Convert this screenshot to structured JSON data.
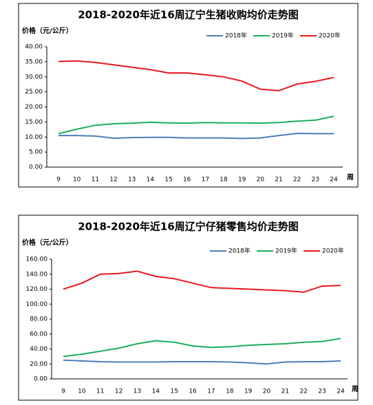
{
  "chart_data": [
    {
      "type": "line",
      "title": "2018-2020年近16周辽宁生猪收购均价走势图",
      "y_label": "价格（元/公斤）",
      "x_label": "周",
      "categories": [
        "9",
        "10",
        "11",
        "12",
        "13",
        "14",
        "15",
        "16",
        "17",
        "18",
        "19",
        "20",
        "21",
        "22",
        "23",
        "24"
      ],
      "ylim": [
        0,
        40
      ],
      "yticks": [
        {
          "value": 0,
          "label": "0.00"
        },
        {
          "value": 5,
          "label": "5.00"
        },
        {
          "value": 10,
          "label": "10.00"
        },
        {
          "value": 15,
          "label": "15.00"
        },
        {
          "value": 20,
          "label": "20.00"
        },
        {
          "value": 25,
          "label": "25.00"
        },
        {
          "value": 30,
          "label": "30.00"
        },
        {
          "value": 35,
          "label": "35.00"
        },
        {
          "value": 40,
          "label": "40.00"
        }
      ],
      "series": [
        {
          "name": "2018年",
          "color": "#4a7ebb",
          "values": [
            10.5,
            10.5,
            10.3,
            9.6,
            9.8,
            9.9,
            9.9,
            9.7,
            9.7,
            9.7,
            9.5,
            9.7,
            10.5,
            11.2,
            11.1,
            11.1
          ]
        },
        {
          "name": "2019年",
          "color": "#1aae5a",
          "values": [
            11.1,
            12.6,
            13.9,
            14.4,
            14.6,
            14.9,
            14.7,
            14.6,
            14.8,
            14.7,
            14.7,
            14.6,
            14.8,
            15.3,
            15.6,
            16.9
          ]
        },
        {
          "name": "2020年",
          "color": "#e8161b",
          "values": [
            35.1,
            35.3,
            34.8,
            34.0,
            33.2,
            32.4,
            31.3,
            31.3,
            30.7,
            30.0,
            28.6,
            25.9,
            25.4,
            27.6,
            28.5,
            29.8
          ]
        }
      ]
    },
    {
      "type": "line",
      "title": "2018-2020年近16周辽宁仔猪零售均价走势图",
      "y_label": "价格（元/公斤）",
      "x_label": "周",
      "categories": [
        "9",
        "10",
        "11",
        "12",
        "13",
        "14",
        "15",
        "16",
        "17",
        "18",
        "19",
        "20",
        "21",
        "22",
        "23",
        "24"
      ],
      "ylim": [
        0,
        160
      ],
      "yticks": [
        {
          "value": 0,
          "label": "0.00"
        },
        {
          "value": 20,
          "label": "20.00"
        },
        {
          "value": 40,
          "label": "40.00"
        },
        {
          "value": 60,
          "label": "60.00"
        },
        {
          "value": 80,
          "label": "80.00"
        },
        {
          "value": 100,
          "label": "100.00"
        },
        {
          "value": 120,
          "label": "120.00"
        },
        {
          "value": 140,
          "label": "140.00"
        },
        {
          "value": 160,
          "label": "160.00"
        }
      ],
      "series": [
        {
          "name": "2018年",
          "color": "#4a7ebb",
          "values": [
            25,
            24,
            23,
            22.5,
            22.5,
            22.5,
            23,
            23,
            23,
            22.5,
            21.5,
            20,
            22.5,
            23,
            23,
            24
          ]
        },
        {
          "name": "2019年",
          "color": "#1aae5a",
          "values": [
            30,
            33,
            37,
            41,
            47,
            51,
            49,
            44,
            42,
            43,
            45,
            46,
            47,
            49,
            50,
            54
          ]
        },
        {
          "name": "2020年",
          "color": "#e8161b",
          "values": [
            120,
            128,
            140,
            141,
            144,
            137,
            134,
            128,
            122,
            121,
            120,
            119,
            118,
            116,
            124,
            125
          ]
        }
      ]
    }
  ]
}
